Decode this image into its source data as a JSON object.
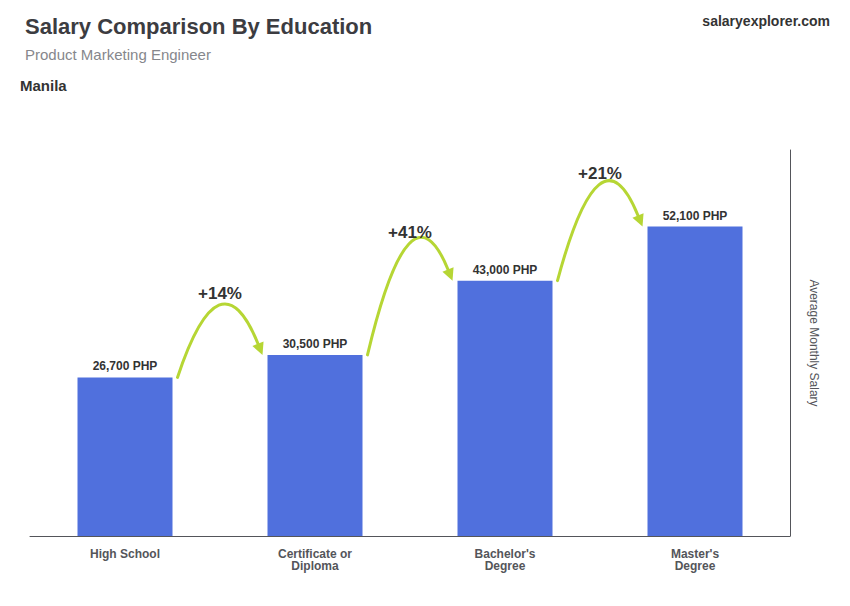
{
  "chart_data": {
    "type": "bar",
    "title": "Salary Comparison By Education",
    "subtitle": "Product Marketing Engineer",
    "ylabel": "Average Monthly Salary",
    "categories": [
      "High School",
      "Certificate or\nDiploma",
      "Bachelor's\nDegree",
      "Master's\nDegree"
    ],
    "values": [
      26700,
      30500,
      43000,
      52100
    ],
    "value_labels": [
      "26,700 PHP",
      "30,500 PHP",
      "43,000 PHP",
      "52,100 PHP"
    ],
    "data_labels": true,
    "ylim": [
      0,
      65000
    ],
    "tick_labels": "x",
    "grid": false,
    "annotations": [
      {
        "text": "Manila"
      },
      {
        "text": "salaryexplorer.com"
      },
      {
        "text": "+14%",
        "from": "High School",
        "to": "Certificate or\nDiploma"
      },
      {
        "text": "+41%",
        "from": "Certificate or\nDiploma",
        "to": "Bachelor's\nDegree"
      },
      {
        "text": "+21%",
        "from": "Bachelor's\nDegree",
        "to": "Master's\nDegree"
      }
    ]
  }
}
